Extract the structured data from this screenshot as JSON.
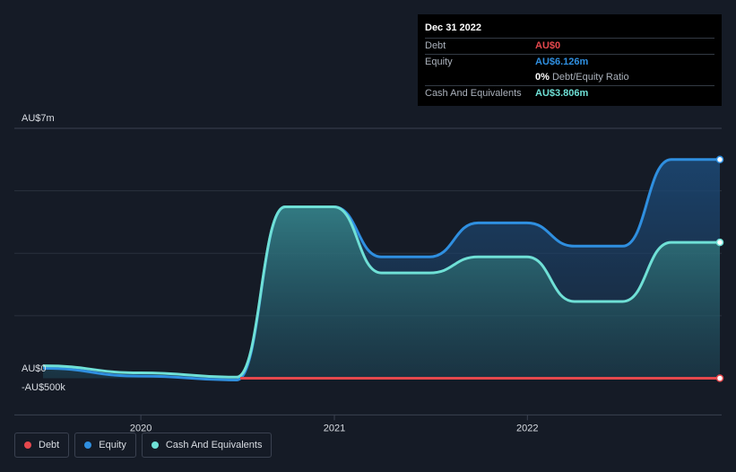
{
  "colors": {
    "background": "#151b26",
    "debt": "#e5484d",
    "equity": "#2f8fe0",
    "cash": "#6fe0d6",
    "grid": "#2a313d"
  },
  "tooltip": {
    "date": "Dec 31 2022",
    "rows": [
      {
        "label": "Debt",
        "value": "AU$0",
        "color": "#e5484d"
      },
      {
        "label": "Equity",
        "value": "AU$6.126m",
        "color": "#2f8fe0"
      },
      {
        "label": "",
        "value": "0%",
        "suffix": "Debt/Equity Ratio",
        "color": "#ffffff"
      },
      {
        "label": "Cash And Equivalents",
        "value": "AU$3.806m",
        "color": "#6fe0d6"
      }
    ]
  },
  "legend": [
    {
      "label": "Debt",
      "icon": "debt-dot-icon",
      "color": "#e5484d"
    },
    {
      "label": "Equity",
      "icon": "equity-dot-icon",
      "color": "#2f8fe0"
    },
    {
      "label": "Cash And Equivalents",
      "icon": "cash-dot-icon",
      "color": "#6fe0d6"
    }
  ],
  "chart_data": {
    "type": "area",
    "y_top_label": "AU$7m",
    "y_zero_label": "AU$0",
    "y_bottom_label": "-AU$500k",
    "ylim": [
      -500000,
      7000000
    ],
    "xlim": [
      "2019-06-30",
      "2022-12-31"
    ],
    "x_tick_labels": [
      "2020",
      "2021",
      "2022"
    ],
    "x_ticks": [
      "2020-01-01",
      "2021-01-01",
      "2022-01-01"
    ],
    "grid": true,
    "series": [
      {
        "name": "Debt",
        "x": [
          "2019-06-30",
          "2019-12-31",
          "2020-06-30",
          "2020-09-30",
          "2020-12-31",
          "2021-03-31",
          "2021-06-30",
          "2021-09-30",
          "2021-12-31",
          "2022-03-31",
          "2022-06-30",
          "2022-09-30",
          "2022-12-31"
        ],
        "values": [
          0,
          0,
          0,
          0,
          0,
          0,
          0,
          0,
          0,
          0,
          0,
          0,
          0
        ]
      },
      {
        "name": "Equity",
        "x": [
          "2019-06-30",
          "2019-12-31",
          "2020-06-30",
          "2020-09-30",
          "2020-12-31",
          "2021-03-31",
          "2021-06-30",
          "2021-09-30",
          "2021-12-31",
          "2022-03-31",
          "2022-06-30",
          "2022-09-30",
          "2022-12-31"
        ],
        "values": [
          280000,
          60000,
          -50000,
          4800000,
          4800000,
          3400000,
          3400000,
          4350000,
          4350000,
          3700000,
          3700000,
          6126000,
          6126000
        ]
      },
      {
        "name": "Cash And Equivalents",
        "x": [
          "2019-06-30",
          "2019-12-31",
          "2020-06-30",
          "2020-09-30",
          "2020-12-31",
          "2021-03-31",
          "2021-06-30",
          "2021-09-30",
          "2021-12-31",
          "2022-03-31",
          "2022-06-30",
          "2022-09-30",
          "2022-12-31"
        ],
        "values": [
          350000,
          150000,
          30000,
          4800000,
          4800000,
          2950000,
          2950000,
          3400000,
          3400000,
          2150000,
          2150000,
          3806000,
          3806000
        ]
      }
    ]
  }
}
